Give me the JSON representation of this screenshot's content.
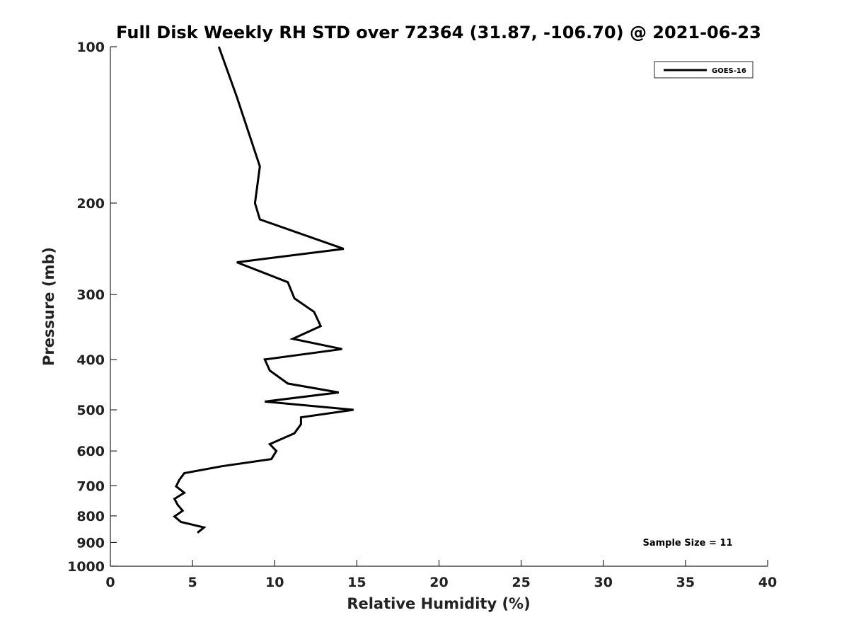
{
  "chart_data": {
    "type": "line",
    "title": "Full Disk Weekly RH STD over 72364 (31.87, -106.70) @ 2021-06-23",
    "xlabel": "Relative Humidity (%)",
    "ylabel": "Pressure (mb)",
    "xlim": [
      0,
      40
    ],
    "ylim": [
      1000,
      100
    ],
    "y_scale": "log",
    "y_reversed": true,
    "grid": false,
    "x_ticks": [
      0,
      5,
      10,
      15,
      20,
      25,
      30,
      35,
      40
    ],
    "x_tick_labels": [
      "0",
      "5",
      "10",
      "15",
      "20",
      "25",
      "30",
      "35",
      "40"
    ],
    "y_ticks": [
      100,
      200,
      300,
      400,
      500,
      600,
      700,
      800,
      900,
      1000
    ],
    "y_tick_labels": [
      "100",
      "200",
      "300",
      "400",
      "500",
      "600",
      "700",
      "800",
      "900",
      "1000"
    ],
    "legend": {
      "position": "top-right",
      "entries": [
        "GOES-16"
      ]
    },
    "annotation": "Sample Size = 11",
    "series": [
      {
        "name": "GOES-16",
        "color": "#000000",
        "points": [
          {
            "x": 6.6,
            "p": 100
          },
          {
            "x": 7.7,
            "p": 125
          },
          {
            "x": 9.1,
            "p": 170
          },
          {
            "x": 8.8,
            "p": 200
          },
          {
            "x": 9.1,
            "p": 215
          },
          {
            "x": 14.2,
            "p": 245
          },
          {
            "x": 7.7,
            "p": 260
          },
          {
            "x": 10.8,
            "p": 284
          },
          {
            "x": 11.2,
            "p": 305
          },
          {
            "x": 12.4,
            "p": 324
          },
          {
            "x": 12.8,
            "p": 345
          },
          {
            "x": 11.1,
            "p": 365
          },
          {
            "x": 14.1,
            "p": 382
          },
          {
            "x": 9.4,
            "p": 400
          },
          {
            "x": 9.7,
            "p": 420
          },
          {
            "x": 10.8,
            "p": 445
          },
          {
            "x": 13.9,
            "p": 463
          },
          {
            "x": 9.4,
            "p": 482
          },
          {
            "x": 14.8,
            "p": 500
          },
          {
            "x": 11.6,
            "p": 517
          },
          {
            "x": 11.6,
            "p": 533
          },
          {
            "x": 11.2,
            "p": 555
          },
          {
            "x": 9.7,
            "p": 582
          },
          {
            "x": 10.1,
            "p": 600
          },
          {
            "x": 9.8,
            "p": 622
          },
          {
            "x": 6.8,
            "p": 642
          },
          {
            "x": 4.5,
            "p": 662
          },
          {
            "x": 4.2,
            "p": 682
          },
          {
            "x": 4.0,
            "p": 702
          },
          {
            "x": 4.5,
            "p": 722
          },
          {
            "x": 3.9,
            "p": 742
          },
          {
            "x": 4.1,
            "p": 762
          },
          {
            "x": 4.4,
            "p": 782
          },
          {
            "x": 3.9,
            "p": 802
          },
          {
            "x": 4.3,
            "p": 822
          },
          {
            "x": 5.7,
            "p": 842
          },
          {
            "x": 5.3,
            "p": 862
          }
        ]
      }
    ]
  }
}
